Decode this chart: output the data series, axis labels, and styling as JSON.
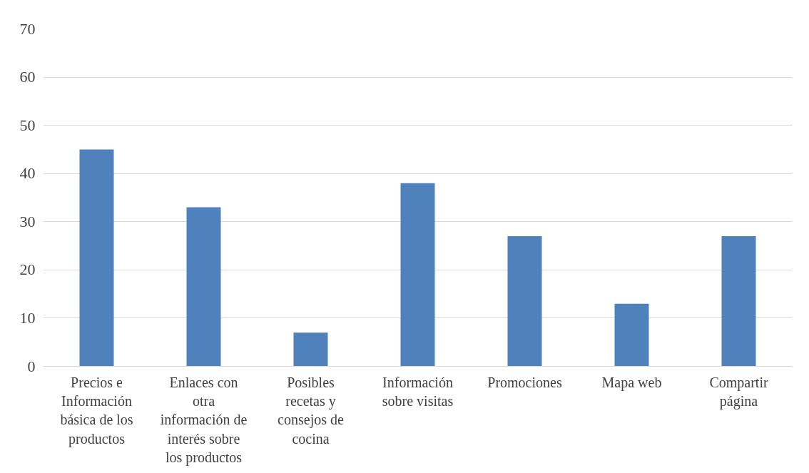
{
  "chart_data": {
    "type": "bar",
    "categories": [
      "Precios e Información básica de los productos",
      "Enlaces con otra información de interés sobre los productos",
      "Posibles recetas y consejos de cocina",
      "Información sobre visitas",
      "Promociones",
      "Mapa web",
      "Compartir página"
    ],
    "values": [
      45,
      33,
      7,
      38,
      27,
      13,
      27
    ],
    "color": "#4f81bd",
    "ylim": [
      0,
      70
    ],
    "yticks": [
      0,
      10,
      20,
      30,
      40,
      50,
      60,
      70
    ],
    "grid": "y"
  }
}
